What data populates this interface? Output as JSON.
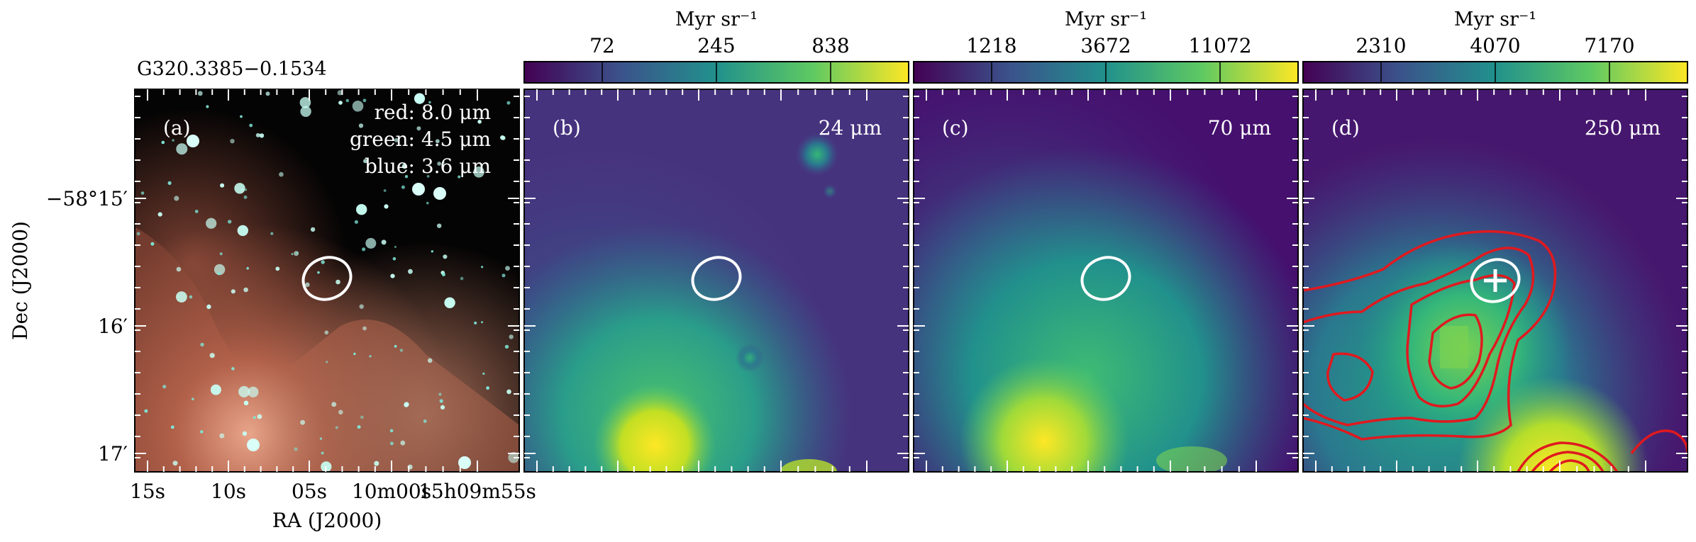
{
  "figure": {
    "source_name": "G320.3385−0.1534",
    "xlabel": "RA (J2000)",
    "ylabel": "Dec (J2000)",
    "ra_ticks": [
      "15s",
      "10s",
      "05s",
      "10m00s",
      "15h09m55s"
    ],
    "dec_ticks": [
      "−58°15′",
      "16′",
      "17′"
    ],
    "unit_label": "Myr sr⁻¹"
  },
  "panels": [
    {
      "id": "a",
      "label": "(a)",
      "legend": [
        "red: 8.0 μm",
        "green: 4.5 μm",
        "blue: 3.6 μm"
      ],
      "colorbar": null,
      "wavelength": ""
    },
    {
      "id": "b",
      "label": "(b)",
      "wavelength": "24 μm",
      "colorbar": {
        "ticks": [
          "72",
          "245",
          "838"
        ]
      }
    },
    {
      "id": "c",
      "label": "(c)",
      "wavelength": "70 μm",
      "colorbar": {
        "ticks": [
          "1218",
          "3672",
          "11072"
        ]
      }
    },
    {
      "id": "d",
      "label": "(d)",
      "wavelength": "250 μm",
      "colorbar": {
        "ticks": [
          "2310",
          "4070",
          "7170"
        ]
      }
    }
  ],
  "colors": {
    "viridis": [
      "#440154",
      "#3b528b",
      "#21918c",
      "#5ec962",
      "#fde725"
    ],
    "contour": "#e0191f",
    "ellipse": "#ffffff"
  }
}
